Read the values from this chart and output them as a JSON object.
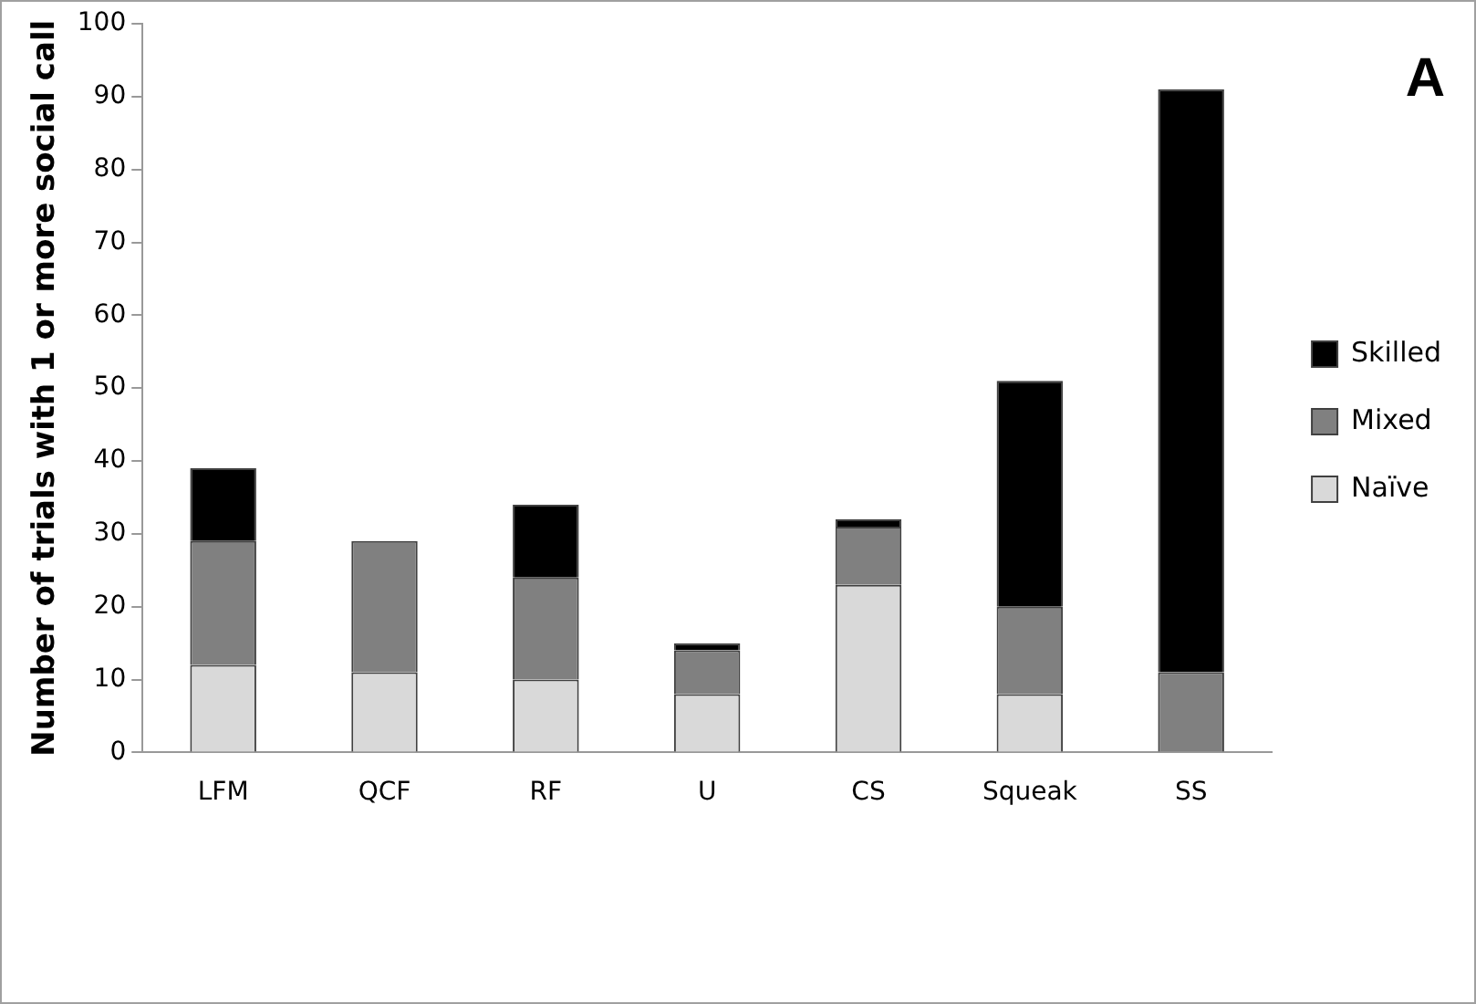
{
  "chart_data": {
    "type": "bar",
    "stacked": true,
    "ylabel": "Number of trials with 1 or more social call",
    "categories": [
      "LFM",
      "QCF",
      "RF",
      "U",
      "CS",
      "Squeak",
      "SS"
    ],
    "series": [
      {
        "name": "Naïve",
        "color": "#d9d9d9",
        "values": [
          12,
          11,
          10,
          8,
          23,
          8,
          0
        ]
      },
      {
        "name": "Mixed",
        "color": "#808080",
        "values": [
          17,
          18,
          14,
          6,
          8,
          12,
          11
        ]
      },
      {
        "name": "Skilled",
        "color": "#000000",
        "values": [
          10,
          0,
          10,
          1,
          1,
          31,
          80
        ]
      }
    ],
    "ylim": [
      0,
      100
    ],
    "yticks": [
      0,
      10,
      20,
      30,
      40,
      50,
      60,
      70,
      80,
      90,
      100
    ],
    "grid": false,
    "legend": "right",
    "annotations": [
      "A"
    ]
  }
}
